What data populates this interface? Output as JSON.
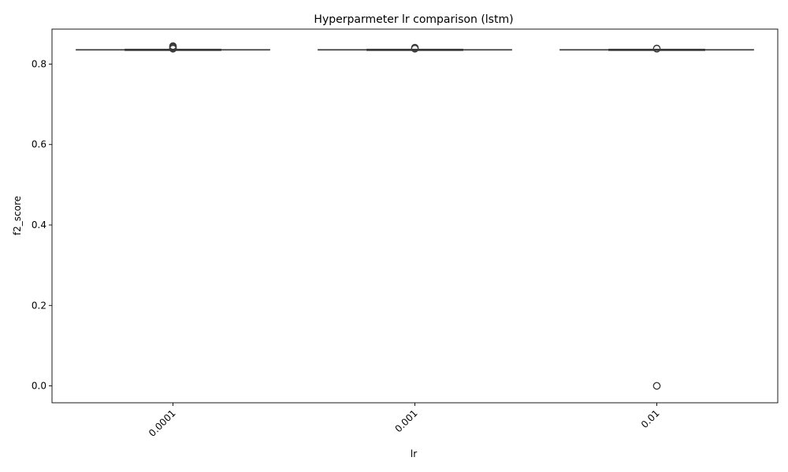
{
  "chart_data": {
    "type": "box",
    "title": "Hyperparmeter lr comparison (lstm)",
    "xlabel": "lr",
    "ylabel": "f2_score",
    "categories": [
      "0.0001",
      "0.001",
      "0.01"
    ],
    "yticks": [
      "0.0",
      "0.2",
      "0.4",
      "0.6",
      "0.8"
    ],
    "ylim": [
      -0.042,
      0.887
    ],
    "grid": false,
    "legend": "none",
    "box_color": "#3a3a3a",
    "boxes": [
      {
        "category": "0.0001",
        "whislo": 0.834,
        "q1": 0.835,
        "median": 0.8355,
        "q3": 0.836,
        "whishi": 0.837,
        "outliers": [
          0.838,
          0.839,
          0.84,
          0.842,
          0.844,
          0.845
        ]
      },
      {
        "category": "0.001",
        "whislo": 0.834,
        "q1": 0.835,
        "median": 0.8355,
        "q3": 0.836,
        "whishi": 0.837,
        "outliers": [
          0.838,
          0.839,
          0.84,
          0.841
        ]
      },
      {
        "category": "0.01",
        "whislo": 0.834,
        "q1": 0.835,
        "median": 0.8355,
        "q3": 0.836,
        "whishi": 0.837,
        "outliers": [
          0.838,
          0.839,
          0.0,
          0.0,
          0.0
        ]
      }
    ]
  }
}
